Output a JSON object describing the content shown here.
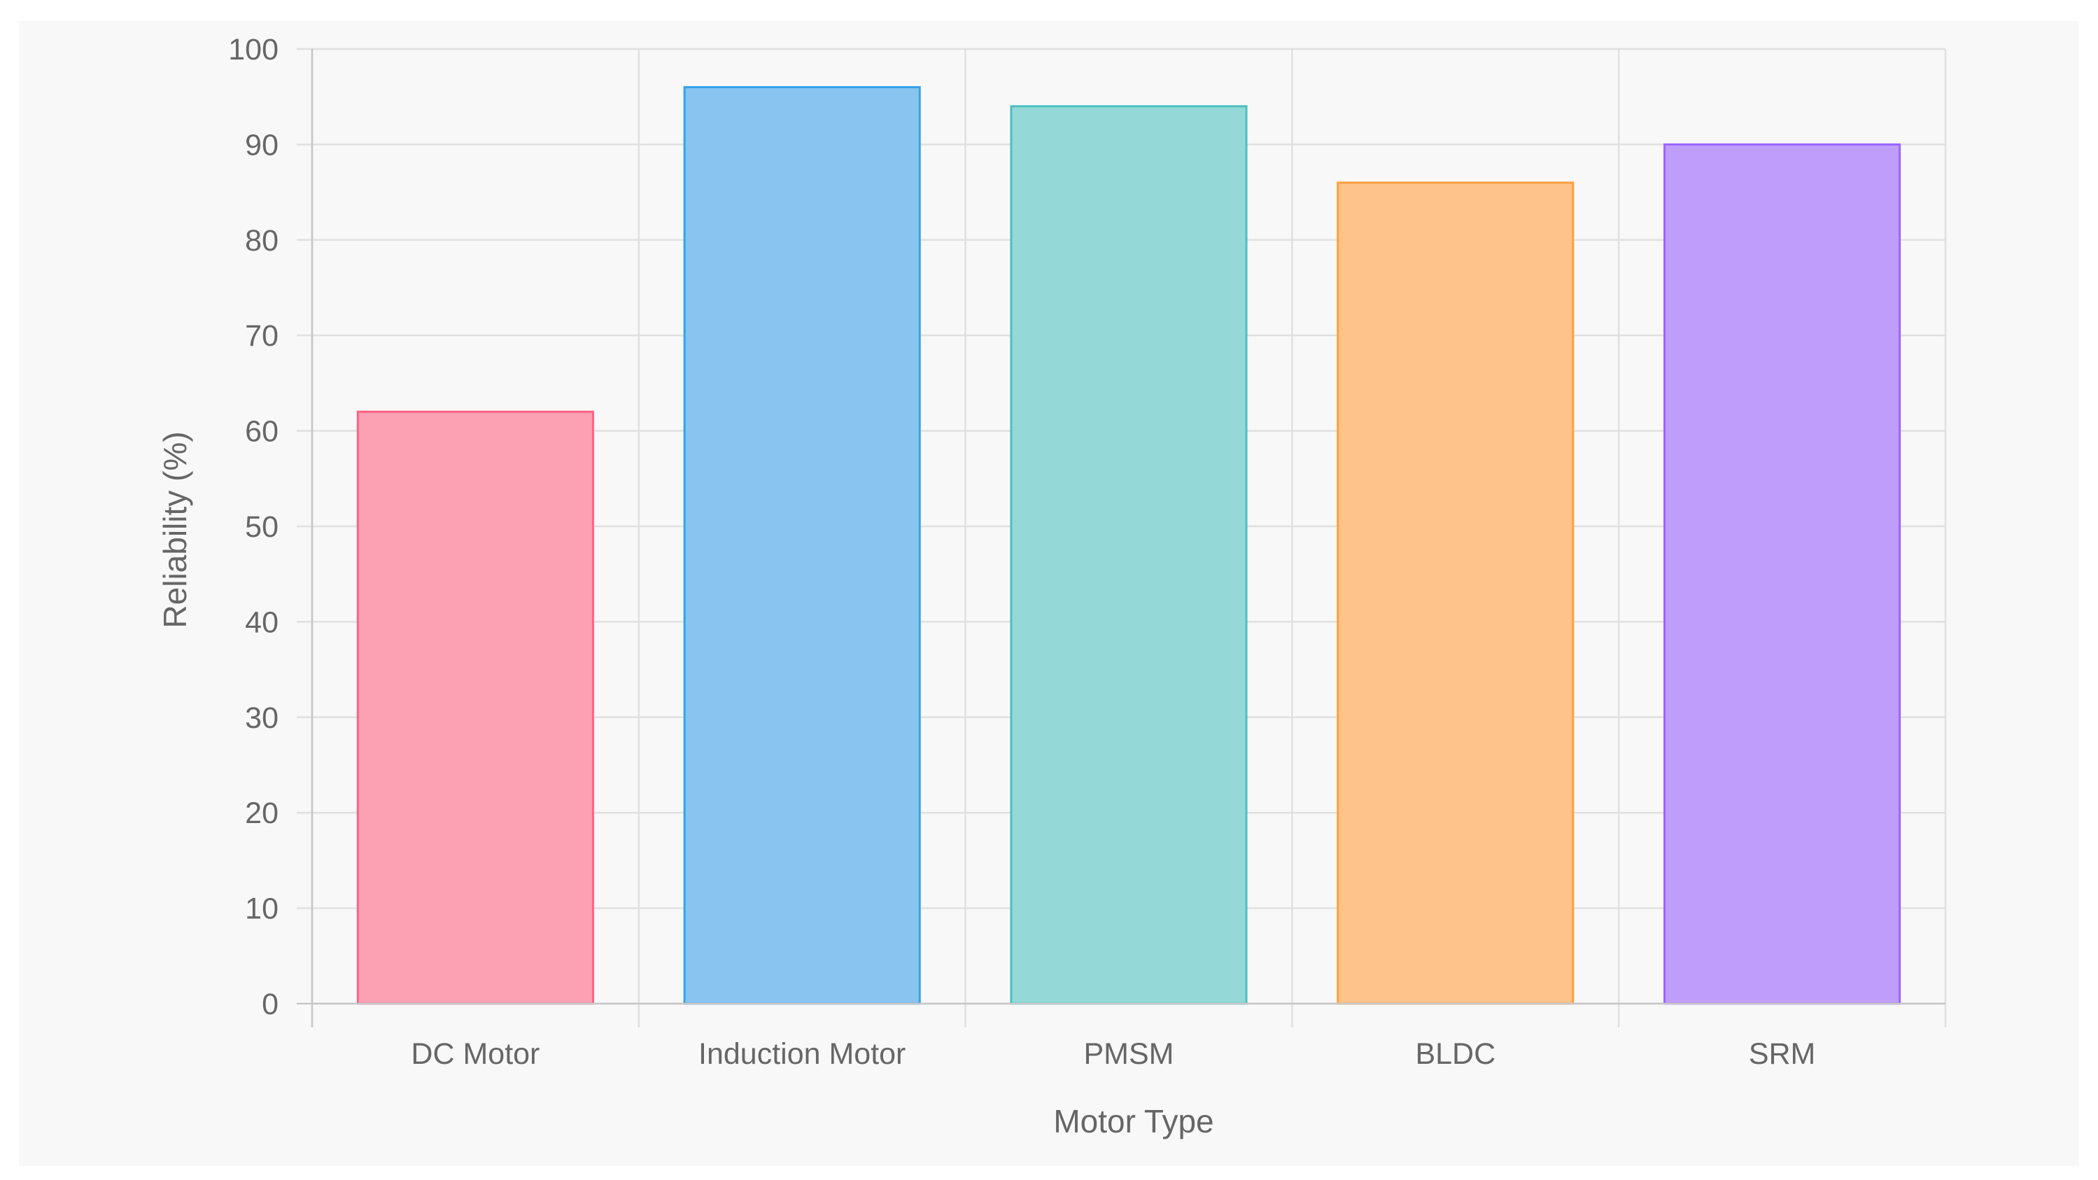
{
  "chart_data": {
    "type": "bar",
    "categories": [
      "DC Motor",
      "Induction Motor",
      "PMSM",
      "BLDC",
      "SRM"
    ],
    "series": [
      {
        "values": [
          62,
          96,
          94,
          86,
          90
        ]
      }
    ],
    "xlabel": "Motor Type",
    "ylabel": "Reliability (%)",
    "ylim": [
      0,
      100
    ],
    "ytick_step": 10,
    "grid": true,
    "legend": "none",
    "colors": {
      "fills": [
        "#fca0b4",
        "#88c4ef",
        "#94d8d8",
        "#fec38b",
        "#bf9efb"
      ],
      "borders": [
        "#ff6384",
        "#36a2eb",
        "#4bc0c0",
        "#ff9f40",
        "#9966ff"
      ],
      "grid": "#e0e0e0",
      "axis": "#c8c8c8",
      "text": "#666666"
    }
  }
}
